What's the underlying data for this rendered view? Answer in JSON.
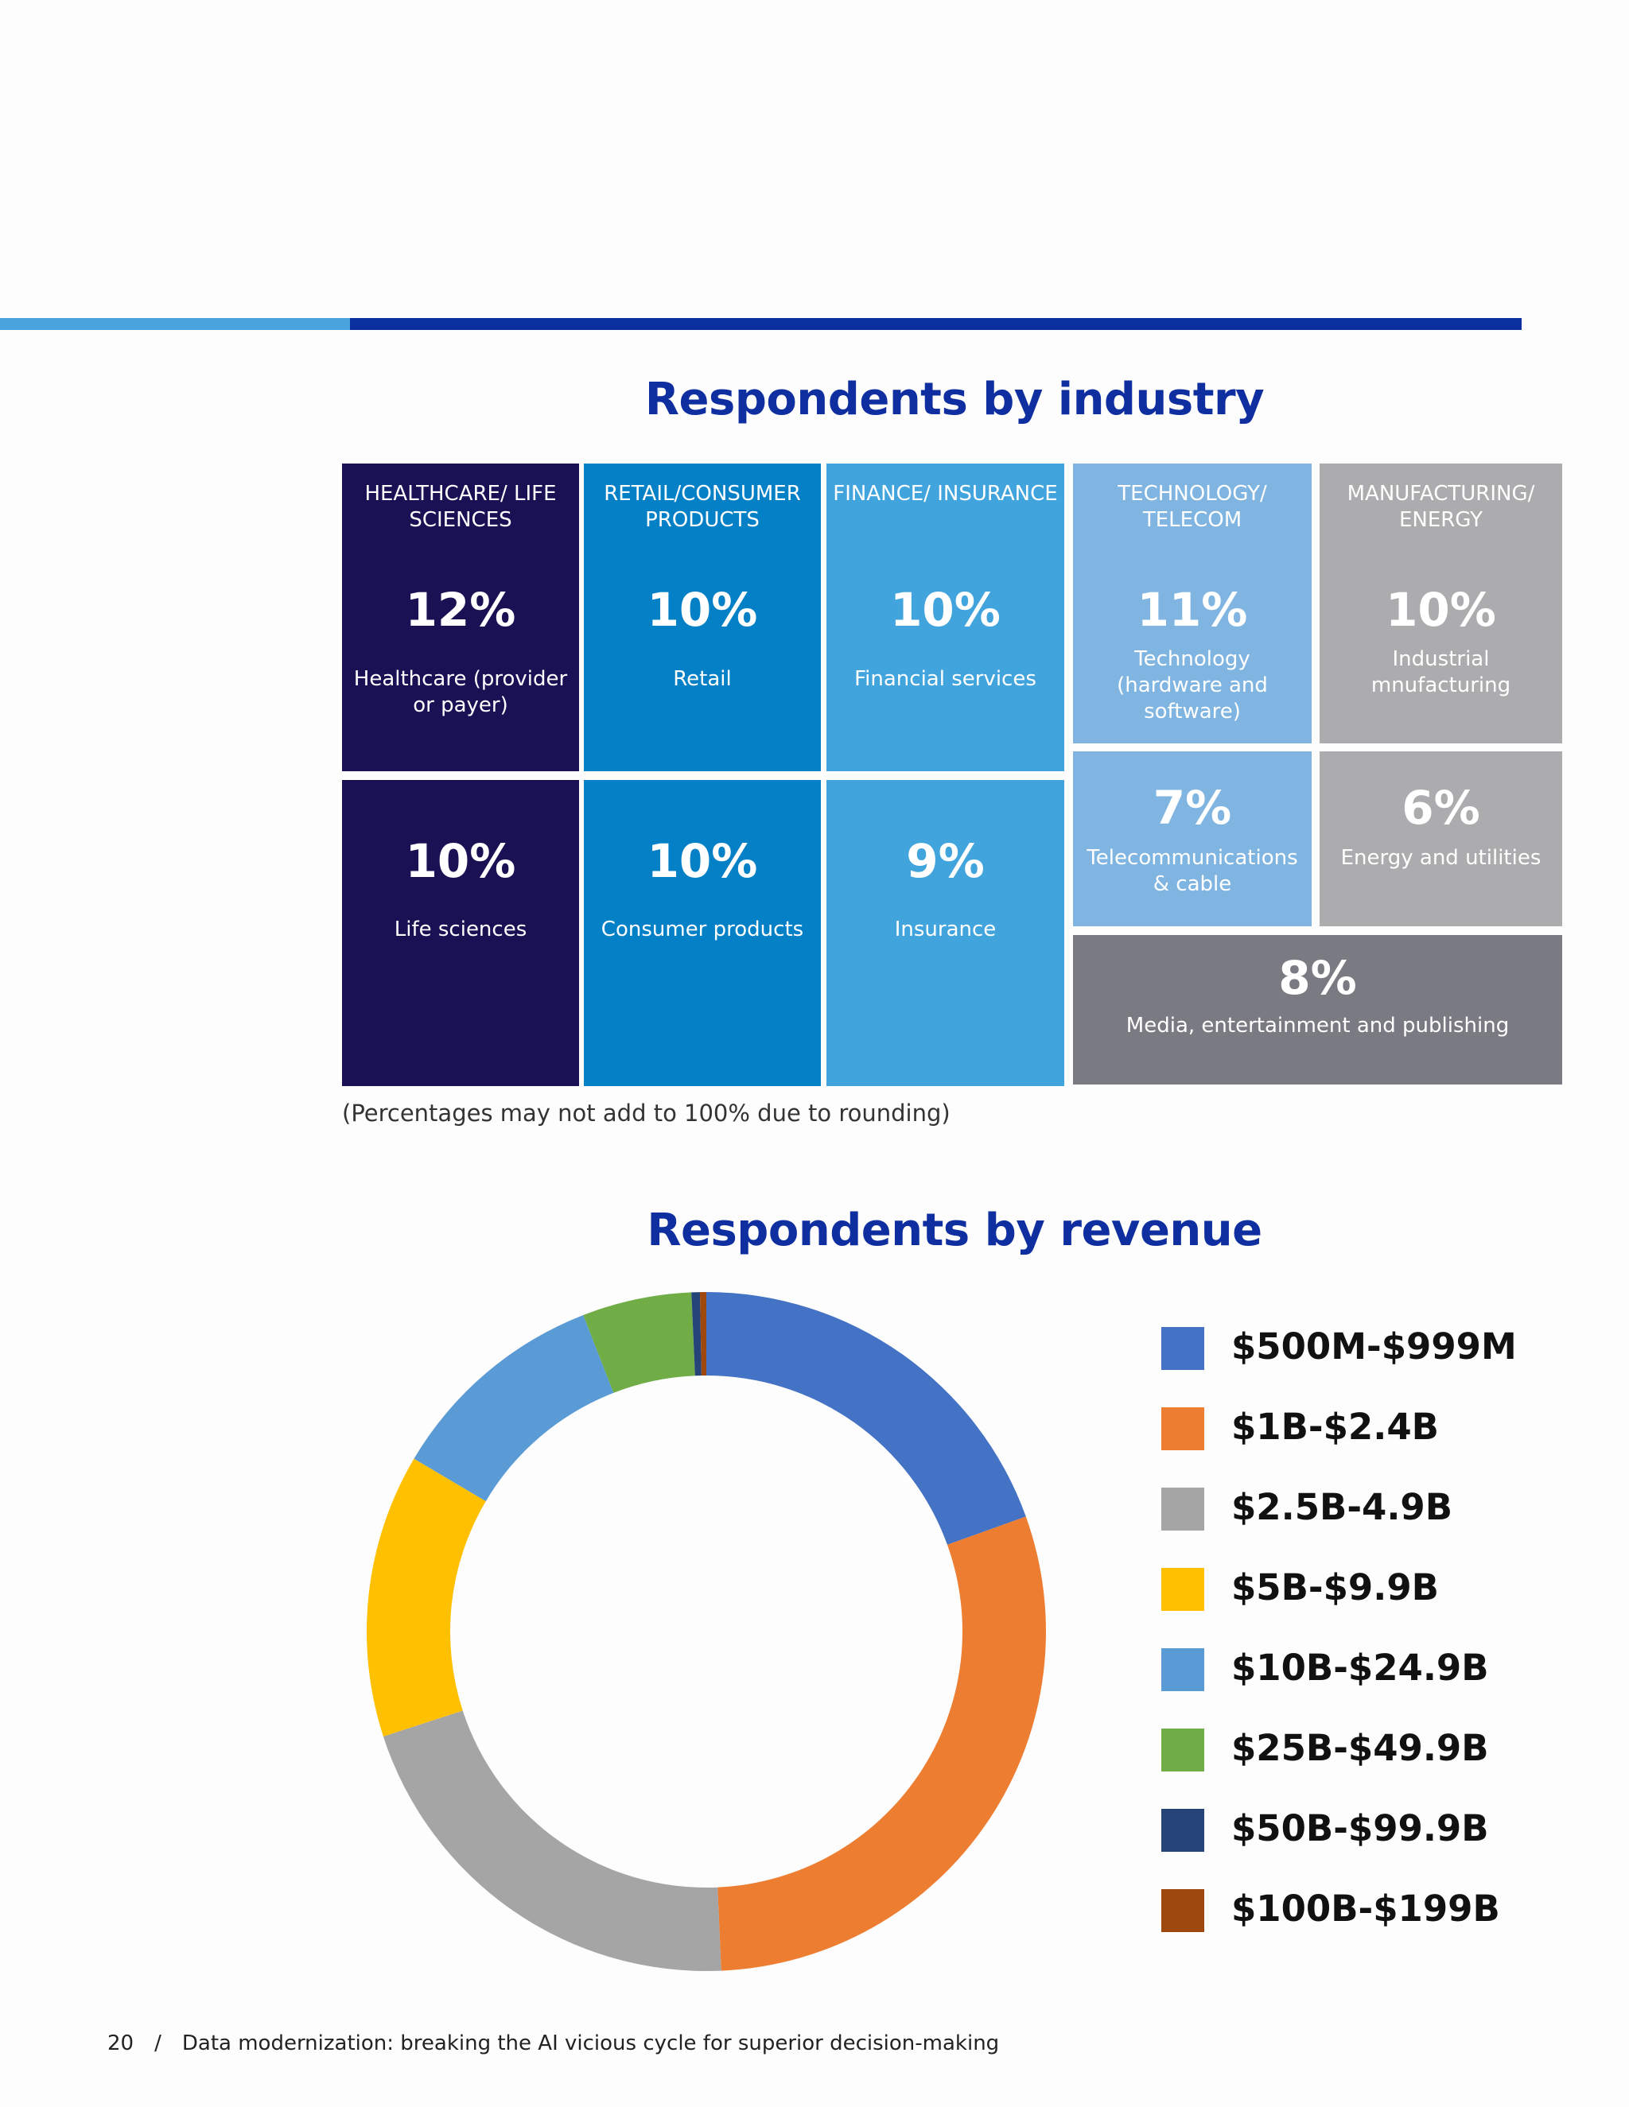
{
  "colors": {
    "accent_light": "#4aa3dc",
    "accent_dark": "#0a2f9e",
    "title": "#0f2fa0",
    "healthcare": "#1a1155",
    "retail": "#0480c6",
    "finance": "#42a4dc",
    "technology": "#80b5e2",
    "manufacturing": "#acacae",
    "media": "#7a7a82"
  },
  "industry": {
    "title": "Respondents by industry",
    "columns": [
      {
        "header": "HEALTHCARE/ LIFE SCIENCES",
        "items": [
          {
            "pct": "12%",
            "label": "Healthcare (provider or payer)"
          },
          {
            "pct": "10%",
            "label": "Life sciences"
          }
        ]
      },
      {
        "header": "RETAIL/CONSUMER PRODUCTS",
        "items": [
          {
            "pct": "10%",
            "label": "Retail"
          },
          {
            "pct": "10%",
            "label": "Consumer products"
          }
        ]
      },
      {
        "header": "FINANCE/ INSURANCE",
        "items": [
          {
            "pct": "10%",
            "label": "Financial services"
          },
          {
            "pct": "9%",
            "label": "Insurance"
          }
        ]
      },
      {
        "header": "TECHNOLOGY/ TELECOM",
        "items": [
          {
            "pct": "11%",
            "label": "Technology (hardware and software)"
          },
          {
            "pct": "7%",
            "label": "Telecommunications & cable"
          }
        ]
      },
      {
        "header": "MANUFACTURING/ ENERGY",
        "items": [
          {
            "pct": "10%",
            "label": "Industrial mnufacturing"
          },
          {
            "pct": "6%",
            "label": "Energy and utilities"
          }
        ]
      }
    ],
    "media": {
      "pct": "8%",
      "label": "Media, entertainment and publishing"
    },
    "footnote": "(Percentages may not add to 100% due to rounding)"
  },
  "revenue": {
    "title": "Respondents by revenue"
  },
  "chart_data": {
    "type": "pie",
    "style": "donut",
    "title": "Respondents by revenue",
    "legend_position": "right",
    "categories": [
      "$500M-$999M",
      "$1B-$2.4B",
      "$2.5B-4.9B",
      "$5B-$9.9B",
      "$10B-$24.9B",
      "$25B-$49.9B",
      "$50B-$99.9B",
      "$100B-$199B"
    ],
    "values": [
      19.5,
      29.8,
      20.7,
      13.5,
      10.6,
      5.2,
      0.4,
      0.3
    ],
    "colors": [
      "#4472c4",
      "#ed7d31",
      "#a5a5a5",
      "#ffc000",
      "#5b9bd5",
      "#70ad47",
      "#264478",
      "#9e480e"
    ]
  },
  "footer": {
    "page_number": "20",
    "separator": "/",
    "text": "Data modernization: breaking the AI vicious cycle for superior decision-making"
  }
}
